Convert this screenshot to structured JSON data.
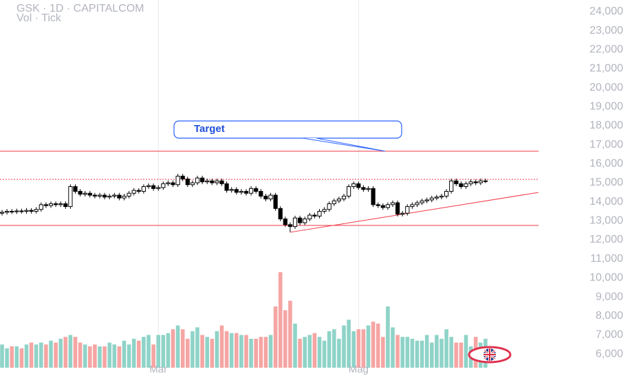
{
  "chart_data": {
    "type": "candlestick",
    "title": "GSK · 1D · CAPITALCOM",
    "subtitle": "Vol · Tick",
    "annotation": "Target",
    "categories": [
      null,
      null,
      null,
      null,
      null,
      null,
      null,
      null,
      null,
      null,
      null,
      null,
      null,
      null,
      null,
      null,
      null,
      null,
      null,
      null,
      null,
      null,
      null,
      null,
      null,
      null,
      null,
      null,
      null,
      null,
      null,
      null,
      "Mar",
      null,
      null,
      null,
      null,
      null,
      null,
      null,
      null,
      null,
      null,
      null,
      null,
      null,
      null,
      null,
      null,
      null,
      null,
      null,
      null,
      null,
      null,
      null,
      null,
      null,
      null,
      null,
      null,
      null,
      null,
      null,
      null,
      null,
      null,
      null,
      null,
      null,
      null,
      null,
      null,
      "Mag",
      null,
      null,
      null,
      null,
      null,
      null,
      null,
      null,
      null,
      null,
      null,
      null,
      null,
      null,
      null,
      null,
      null,
      null,
      null,
      null,
      null,
      null,
      null,
      null,
      null,
      null
    ],
    "open": [
      13400,
      13450,
      13500,
      13480,
      13520,
      13500,
      13550,
      13500,
      13600,
      13850,
      13800,
      13900,
      13850,
      13900,
      13750,
      14800,
      14550,
      14400,
      14450,
      14350,
      14300,
      14350,
      14250,
      14300,
      14350,
      14200,
      14300,
      14450,
      14600,
      14550,
      14800,
      14850,
      14700,
      14750,
      14950,
      15000,
      14900,
      15350,
      15200,
      14900,
      15000,
      15250,
      15050,
      15100,
      15000,
      15100,
      14950,
      14600,
      14650,
      14500,
      14550,
      14450,
      14700,
      14550,
      14300,
      14150,
      14350,
      13650,
      13100,
      12800,
      12700,
      13150,
      12900,
      13100,
      13300,
      13250,
      13500,
      13600,
      13900,
      14050,
      14150,
      14300,
      14800,
      14950,
      14750,
      14650,
      14700,
      13850,
      13800,
      13700,
      13850,
      13950,
      13350,
      13400,
      13750,
      13850,
      13950,
      14050,
      14100,
      14200,
      14250,
      14300,
      14550,
      15100,
      14950,
      14800,
      14950,
      15050,
      15000,
      15100
    ],
    "high": [
      13570,
      13620,
      13620,
      13640,
      13640,
      13670,
      13670,
      13720,
      13970,
      13970,
      14020,
      14020,
      14020,
      14020,
      14920,
      14920,
      14670,
      14570,
      14570,
      14470,
      14470,
      14470,
      14420,
      14470,
      14470,
      14420,
      14570,
      14720,
      14720,
      14920,
      14970,
      14970,
      14870,
      15070,
      15120,
      15120,
      15470,
      15470,
      15320,
      15120,
      15370,
      15370,
      15220,
      15220,
      15220,
      15220,
      15070,
      14770,
      14770,
      14670,
      14670,
      14820,
      14820,
      14670,
      14420,
      14470,
      14470,
      13770,
      13220,
      12920,
      13270,
      13270,
      13220,
      13420,
      13420,
      13620,
      13720,
      14020,
      14170,
      14270,
      14420,
      14920,
      15070,
      15070,
      14870,
      14820,
      14820,
      13970,
      13920,
      13970,
      14070,
      14070,
      13520,
      13870,
      13970,
      14070,
      14170,
      14220,
      14320,
      14370,
      14420,
      14670,
      15220,
      15220,
      15070,
      15070,
      15170,
      15170,
      15220,
      15220
    ],
    "low": [
      13280,
      13330,
      13360,
      13360,
      13380,
      13380,
      13380,
      13380,
      13480,
      13680,
      13680,
      13730,
      13730,
      13630,
      13630,
      14430,
      14280,
      14280,
      14230,
      14180,
      14180,
      14130,
      14130,
      14180,
      14080,
      14080,
      14180,
      14330,
      14430,
      14430,
      14680,
      14580,
      14580,
      14630,
      14830,
      14780,
      14780,
      15080,
      14780,
      14780,
      14880,
      14930,
      14930,
      14880,
      14880,
      14830,
      14480,
      14480,
      14380,
      14380,
      14330,
      14330,
      14430,
      14180,
      14030,
      14030,
      13530,
      12980,
      12680,
      12400,
      12580,
      12780,
      12780,
      12980,
      13130,
      13130,
      13380,
      13480,
      13780,
      13930,
      14030,
      14180,
      14680,
      14630,
      14530,
      14530,
      13730,
      13680,
      13580,
      13580,
      13730,
      13230,
      13230,
      13280,
      13630,
      13730,
      13830,
      13930,
      13980,
      14080,
      14130,
      14180,
      14430,
      14830,
      14680,
      14680,
      14830,
      14880,
      14880,
      14980
    ],
    "close": [
      13450,
      13500,
      13480,
      13520,
      13500,
      13550,
      13500,
      13600,
      13850,
      13800,
      13900,
      13850,
      13900,
      13750,
      14800,
      14550,
      14400,
      14450,
      14350,
      14300,
      14350,
      14250,
      14300,
      14350,
      14200,
      14300,
      14450,
      14600,
      14550,
      14800,
      14850,
      14700,
      14750,
      14950,
      15000,
      14900,
      15350,
      15200,
      14900,
      15000,
      15250,
      15050,
      15100,
      15000,
      15100,
      14950,
      14600,
      14650,
      14500,
      14550,
      14450,
      14700,
      14550,
      14300,
      14150,
      14350,
      13650,
      13100,
      12800,
      12700,
      13150,
      12900,
      13100,
      13300,
      13250,
      13500,
      13600,
      13900,
      14050,
      14150,
      14300,
      14800,
      14950,
      14750,
      14650,
      14700,
      13850,
      13800,
      13700,
      13850,
      13950,
      13350,
      13400,
      13750,
      13850,
      13950,
      14050,
      14100,
      14200,
      14250,
      14300,
      14550,
      15100,
      14950,
      14800,
      14950,
      15050,
      15000,
      15100,
      15100
    ],
    "volume": [
      6500,
      6300,
      6400,
      6400,
      6300,
      6500,
      6600,
      6500,
      6600,
      6500,
      6700,
      6600,
      6800,
      6900,
      7000,
      6900,
      6600,
      6500,
      6400,
      6500,
      6400,
      6400,
      6600,
      6500,
      6400,
      6700,
      6500,
      6800,
      6700,
      6900,
      7000,
      6500,
      7000,
      7000,
      7100,
      7300,
      7500,
      7300,
      6800,
      7200,
      7400,
      7000,
      6900,
      6800,
      7200,
      7500,
      7200,
      7100,
      7100,
      7000,
      7000,
      6800,
      6800,
      6900,
      6900,
      7000,
      8500,
      10300,
      8300,
      8800,
      7600,
      6800,
      6900,
      7000,
      7100,
      6900,
      6700,
      7200,
      7300,
      6800,
      7500,
      7800,
      7200,
      7300,
      7300,
      7500,
      7700,
      7600,
      6900,
      8500,
      7400,
      7000,
      6900,
      6900,
      6800,
      6700,
      6700,
      7000,
      6600,
      7000,
      6800,
      7300,
      6900,
      6600,
      6600,
      7000,
      6400,
      6900,
      6600,
      6800
    ],
    "up_color": "#ffffff",
    "down_color": "#000000",
    "wick_color": "#000000",
    "volume_up_color": "#8fd3c8",
    "volume_down_color": "#f5a5a3",
    "ylim": [
      5280,
      24610
    ],
    "yticks": [
      {
        "value": 24000,
        "label": "24,000"
      },
      {
        "value": 23000,
        "label": "23,000"
      },
      {
        "value": 22000,
        "label": "22,000"
      },
      {
        "value": 21000,
        "label": "21,000"
      },
      {
        "value": 20000,
        "label": "20,000"
      },
      {
        "value": 19000,
        "label": "19,000"
      },
      {
        "value": 18000,
        "label": "18,000"
      },
      {
        "value": 17000,
        "label": "17,000"
      },
      {
        "value": 16000,
        "label": "16,000"
      },
      {
        "value": 15000,
        "label": "15,000"
      },
      {
        "value": 14000,
        "label": "14,000"
      },
      {
        "value": 13000,
        "label": "13,000"
      },
      {
        "value": 12000,
        "label": "12,000"
      },
      {
        "value": 11000,
        "label": "11,000"
      },
      {
        "value": 10000,
        "label": "10,000"
      },
      {
        "value": 9000,
        "label": "9,000"
      },
      {
        "value": 8000,
        "label": "8,000"
      },
      {
        "value": 7000,
        "label": "7,000"
      },
      {
        "value": 6000,
        "label": "6,000"
      }
    ],
    "horizontal_lines": [
      {
        "value": 16660,
        "color": "#f23645",
        "dashed": false
      },
      {
        "value": 15180,
        "color": "#f23645",
        "dashed": true
      },
      {
        "value": 12760,
        "color": "#f23645",
        "dashed": false
      }
    ],
    "trend_line": {
      "x": [
        59,
        110
      ],
      "y": [
        12400,
        14500
      ],
      "color": "#f23645"
    },
    "target_line": 16660
  }
}
